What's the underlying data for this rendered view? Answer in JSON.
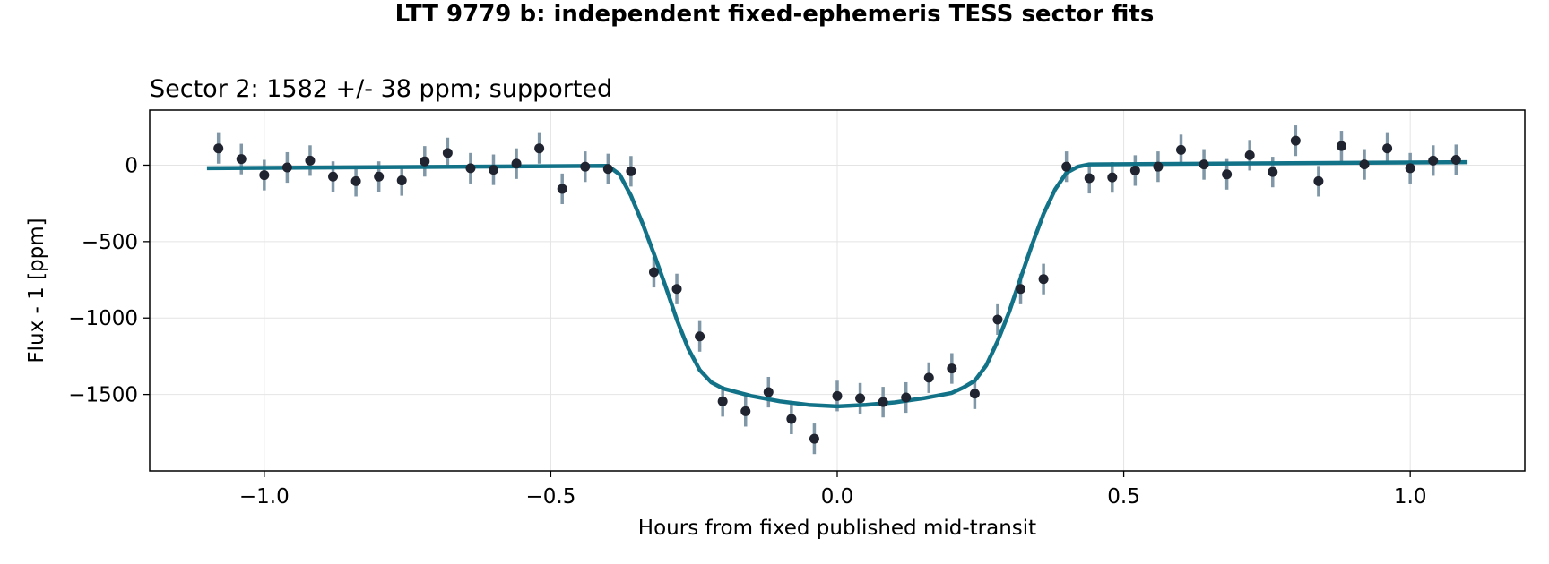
{
  "figure_title": "LTT 9779 b: independent fixed-ephemeris TESS sector fits",
  "chart_data": {
    "type": "scatter",
    "title": "Sector 2: 1582 +/- 38 ppm; supported",
    "xlabel": "Hours from fixed published mid-transit",
    "ylabel": "Flux - 1 [ppm]",
    "xlim": [
      -1.2,
      1.2
    ],
    "ylim": [
      -2000,
      360
    ],
    "xticks": [
      -1.0,
      -0.5,
      0.0,
      0.5,
      1.0
    ],
    "xtick_labels": [
      "−1.0",
      "−0.5",
      "0.0",
      "0.5",
      "1.0"
    ],
    "yticks": [
      0,
      -500,
      -1000,
      -1500
    ],
    "ytick_labels": [
      "0",
      "−500",
      "−1000",
      "−1500"
    ],
    "grid": true,
    "colors": {
      "points": "#1f2430",
      "errorbars": "#7f97a6",
      "model": "#127287"
    },
    "series": [
      {
        "kind": "points_with_errorbars",
        "x": [
          -1.08,
          -1.04,
          -1.0,
          -0.96,
          -0.92,
          -0.88,
          -0.84,
          -0.8,
          -0.76,
          -0.72,
          -0.68,
          -0.64,
          -0.6,
          -0.56,
          -0.52,
          -0.48,
          -0.44,
          -0.4,
          -0.36,
          -0.32,
          -0.28,
          -0.24,
          -0.2,
          -0.16,
          -0.12,
          -0.08,
          -0.04,
          0.0,
          0.04,
          0.08,
          0.12,
          0.16,
          0.2,
          0.24,
          0.28,
          0.32,
          0.36,
          0.4,
          0.44,
          0.48,
          0.52,
          0.56,
          0.6,
          0.64,
          0.68,
          0.72,
          0.76,
          0.8,
          0.84,
          0.88,
          0.92,
          0.96,
          1.0,
          1.04,
          1.08
        ],
        "y": [
          110,
          40,
          -65,
          -15,
          30,
          -75,
          -105,
          -75,
          -100,
          25,
          80,
          -20,
          -30,
          10,
          110,
          -155,
          -10,
          -25,
          -40,
          -700,
          -810,
          -1120,
          -1545,
          -1610,
          -1485,
          -1660,
          -1790,
          -1510,
          -1525,
          -1550,
          -1520,
          -1390,
          -1330,
          -1495,
          -1010,
          -810,
          -745,
          -10,
          -85,
          -80,
          -35,
          -10,
          100,
          5,
          -60,
          65,
          -45,
          160,
          -105,
          125,
          5,
          110,
          -20,
          30,
          35
        ],
        "yerr": [
          100,
          100,
          100,
          100,
          100,
          100,
          100,
          100,
          100,
          100,
          100,
          100,
          100,
          100,
          100,
          100,
          100,
          100,
          100,
          100,
          100,
          100,
          100,
          100,
          100,
          100,
          100,
          100,
          100,
          100,
          100,
          100,
          100,
          100,
          100,
          100,
          100,
          100,
          100,
          100,
          100,
          100,
          100,
          100,
          100,
          100,
          100,
          100,
          100,
          100,
          100,
          100,
          100,
          100,
          100
        ]
      },
      {
        "kind": "model_line",
        "x": [
          -1.1,
          -0.4,
          -0.38,
          -0.36,
          -0.34,
          -0.32,
          -0.3,
          -0.28,
          -0.26,
          -0.24,
          -0.22,
          -0.2,
          -0.15,
          -0.1,
          -0.05,
          0.0,
          0.05,
          0.1,
          0.15,
          0.2,
          0.22,
          0.24,
          0.26,
          0.28,
          0.3,
          0.32,
          0.34,
          0.36,
          0.38,
          0.4,
          0.42,
          0.44,
          1.1
        ],
        "y": [
          -20,
          -5,
          -60,
          -200,
          -380,
          -580,
          -790,
          -1010,
          -1200,
          -1340,
          -1420,
          -1460,
          -1510,
          -1545,
          -1568,
          -1578,
          -1568,
          -1552,
          -1525,
          -1490,
          -1455,
          -1410,
          -1310,
          -1150,
          -960,
          -740,
          -520,
          -320,
          -160,
          -50,
          -10,
          5,
          20
        ]
      }
    ]
  }
}
